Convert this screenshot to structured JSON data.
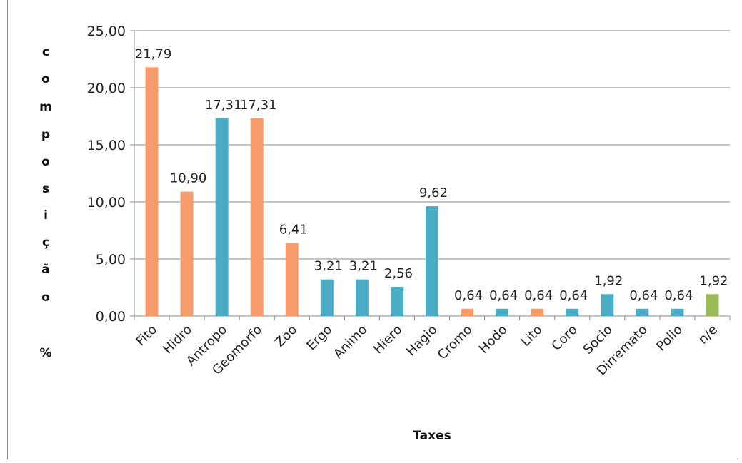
{
  "chart_data": {
    "type": "bar",
    "xlabel": "Taxes",
    "ylabel": "composição %",
    "ylabel_chars": [
      "c",
      "o",
      "m",
      "p",
      "o",
      "s",
      "i",
      "ç",
      "ã",
      "o"
    ],
    "ylabel_unit": "%",
    "ylim": [
      0,
      25
    ],
    "yticks": [
      0,
      5,
      10,
      15,
      20,
      25
    ],
    "ytick_labels": [
      "0,00",
      "5,00",
      "10,00",
      "15,00",
      "20,00",
      "25,00"
    ],
    "grid": true,
    "categories": [
      "Fito",
      "Hidro",
      "Antropo",
      "Geomorfo",
      "Zoo",
      "Ergo",
      "Animo",
      "Hiero",
      "Hagio",
      "Cromo",
      "Hodo",
      "Lito",
      "Coro",
      "Socio",
      "Dirremato",
      "Polio",
      "n/e"
    ],
    "values": [
      21.79,
      10.9,
      17.31,
      17.31,
      6.41,
      3.21,
      3.21,
      2.56,
      9.62,
      0.64,
      0.64,
      0.64,
      0.64,
      1.92,
      0.64,
      0.64,
      1.92
    ],
    "value_labels": [
      "21,79",
      "10,90",
      "17,31",
      "17,31",
      "6,41",
      "3,21",
      "3,21",
      "2,56",
      "9,62",
      "0,64",
      "0,64",
      "0,64",
      "0,64",
      "1,92",
      "0,64",
      "0,64",
      "1,92"
    ],
    "bar_colors": [
      "#F79B6A",
      "#F79B6A",
      "#4BACC6",
      "#F79B6A",
      "#F79B6A",
      "#4BACC6",
      "#4BACC6",
      "#4BACC6",
      "#4BACC6",
      "#F79B6A",
      "#4BACC6",
      "#F79B6A",
      "#4BACC6",
      "#4BACC6",
      "#4BACC6",
      "#4BACC6",
      "#9BBB59"
    ]
  }
}
